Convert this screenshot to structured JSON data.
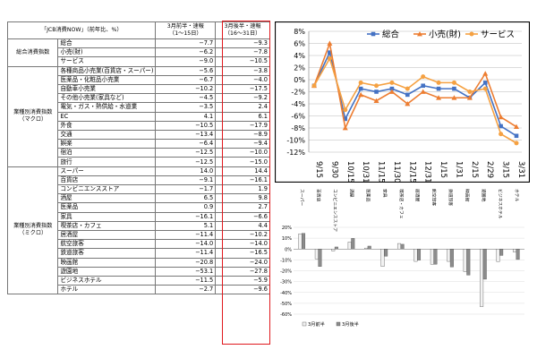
{
  "table": {
    "header": {
      "title": "「JCB消費NOW」（前年比、%）",
      "col_a_line1": "3月前半・速報",
      "col_a_line2": "（1〜15日）",
      "col_b_line1": "3月後半・速報",
      "col_b_line2": "（16〜31日）"
    },
    "groups": [
      {
        "label": "総合消費指数",
        "rows": [
          {
            "name": "総合",
            "a": "−7.7",
            "b": "−9.3"
          },
          {
            "name": "小売(財)",
            "a": "−6.2",
            "b": "−7.8"
          },
          {
            "name": "サービス",
            "a": "−9.0",
            "b": "−10.5"
          }
        ]
      },
      {
        "label": "業種別消費指数（マクロ）",
        "rows": [
          {
            "name": "各種商品小売業(百貨店・スーパー)",
            "a": "−5.6",
            "b": "−3.8"
          },
          {
            "name": "医薬品・化粧品小売業",
            "a": "−6.7",
            "b": "−4.0"
          },
          {
            "name": "自動車小売業",
            "a": "−10.2",
            "b": "−17.5"
          },
          {
            "name": "その他小売業(家具など)",
            "a": "−4.5",
            "b": "−9.2"
          },
          {
            "name": "電気・ガス・熱供給・水道業",
            "a": "−3.5",
            "b": "2.4"
          },
          {
            "name": "EC",
            "a": "4.1",
            "b": "6.1"
          },
          {
            "name": "外食",
            "a": "−10.5",
            "b": "−17.9"
          },
          {
            "name": "交通",
            "a": "−13.4",
            "b": "−8.9"
          },
          {
            "name": "娯楽",
            "a": "−6.4",
            "b": "−9.4"
          },
          {
            "name": "宿泊",
            "a": "−12.5",
            "b": "−10.0"
          },
          {
            "name": "旅行",
            "a": "−12.5",
            "b": "−15.0"
          }
        ]
      },
      {
        "label": "業種別消費指数（ミクロ）",
        "rows": [
          {
            "name": "スーパー",
            "a": "14.0",
            "b": "14.4"
          },
          {
            "name": "百貨店",
            "a": "−9.1",
            "b": "−16.1"
          },
          {
            "name": "コンビニエンスストア",
            "a": "−1.7",
            "b": "1.9"
          },
          {
            "name": "酒屋",
            "a": "6.5",
            "b": "9.8"
          },
          {
            "name": "医薬品",
            "a": "0.9",
            "b": "2.7"
          },
          {
            "name": "家具",
            "a": "−16.1",
            "b": "−6.6"
          },
          {
            "name": "喫茶店・カフェ",
            "a": "5.1",
            "b": "4.4"
          },
          {
            "name": "居酒屋",
            "a": "−11.4",
            "b": "−10.2"
          },
          {
            "name": "航空旅客",
            "a": "−14.0",
            "b": "−14.0"
          },
          {
            "name": "鉄道旅客",
            "a": "−11.4",
            "b": "−16.5"
          },
          {
            "name": "映画館",
            "a": "−20.8",
            "b": "−24.0"
          },
          {
            "name": "遊園地",
            "a": "−53.1",
            "b": "−27.8"
          },
          {
            "name": "ビジネスホテル",
            "a": "−11.5",
            "b": "−5.9"
          },
          {
            "name": "ホテル",
            "a": "−2.7",
            "b": "−9.6"
          }
        ]
      }
    ]
  },
  "chart_data": [
    {
      "type": "line",
      "x": [
        "9/15",
        "9/30",
        "10/15",
        "10/31",
        "11/15",
        "11/30",
        "12/15",
        "12/31",
        "1/15",
        "1/31",
        "2/15",
        "2/29",
        "3/15",
        "3/31"
      ],
      "ylim": [
        -12,
        8
      ],
      "yticks": [
        "8%",
        "6%",
        "4%",
        "2%",
        "0%",
        "-2%",
        "-4%",
        "-6%",
        "-8%",
        "-10%",
        "-12%"
      ],
      "grid": true,
      "legend": "top-right",
      "series": [
        {
          "name": "総合",
          "color": "#4472c4",
          "marker": "square",
          "values": [
            -1.0,
            4.5,
            -6.5,
            -1.5,
            -2.0,
            -1.5,
            -2.5,
            -1.0,
            -1.5,
            -1.5,
            -3.0,
            -0.5,
            -7.7,
            -9.3
          ]
        },
        {
          "name": "小売(財)",
          "color": "#ed7d31",
          "marker": "triangle",
          "values": [
            -1.0,
            6.0,
            -8.0,
            -2.5,
            -3.5,
            -2.0,
            -4.0,
            -2.0,
            -3.0,
            -3.0,
            -3.0,
            1.0,
            -6.2,
            -7.8
          ]
        },
        {
          "name": "サービス",
          "color": "#f5a142",
          "marker": "circle",
          "values": [
            -1.0,
            3.5,
            -5.0,
            -0.5,
            -1.0,
            -0.5,
            -1.5,
            0.5,
            -0.5,
            -0.5,
            -2.0,
            -1.5,
            -9.0,
            -10.5
          ]
        }
      ]
    },
    {
      "type": "bar",
      "categories": [
        "スーパー",
        "百貨店",
        "コンビニエンスストア",
        "酒屋",
        "医薬品",
        "家具",
        "喫茶店・カフェ",
        "居酒屋",
        "航空旅客",
        "鉄道旅客",
        "映画館",
        "遊園地",
        "ビジネスホテル",
        "ホテル"
      ],
      "ylim": [
        -60,
        20
      ],
      "yticks": [
        "20%",
        "10%",
        "0%",
        "-10%",
        "-20%",
        "-30%",
        "-40%",
        "-50%",
        "-60%"
      ],
      "grid": true,
      "legend": "bottom-left",
      "series": [
        {
          "name": "3月前半",
          "color": "#f2f2f2",
          "values": [
            14.0,
            -9.1,
            -1.7,
            6.5,
            0.9,
            -16.1,
            5.1,
            -11.4,
            -14.0,
            -11.4,
            -20.8,
            -53.1,
            -11.5,
            -2.7
          ]
        },
        {
          "name": "3月後半",
          "color": "#8c8c8c",
          "values": [
            14.4,
            -16.1,
            1.9,
            9.8,
            2.7,
            -6.6,
            4.4,
            -10.2,
            -14.0,
            -16.5,
            -24.0,
            -27.8,
            -5.9,
            -9.6
          ]
        }
      ]
    }
  ]
}
